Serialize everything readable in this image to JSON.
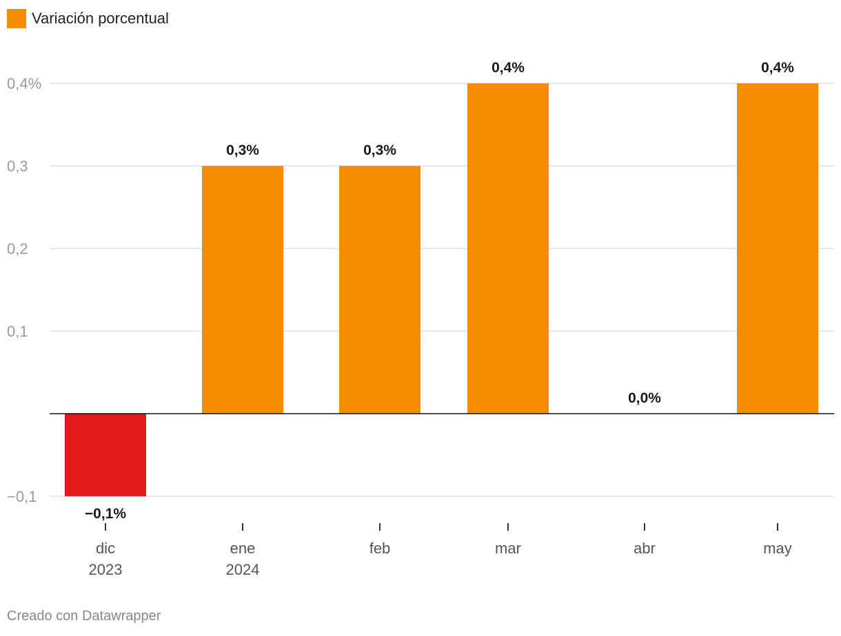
{
  "legend": {
    "label": "Variación porcentual",
    "color": "#f68e00"
  },
  "footer": {
    "text": "Creado con Datawrapper"
  },
  "colors": {
    "positive": "#f68e00",
    "negative": "#e31a1c",
    "grid": "#e2e2e2",
    "baseline": "#111111"
  },
  "chart_data": {
    "type": "bar",
    "categories": [
      [
        "dic",
        "2023"
      ],
      [
        "ene",
        "2024"
      ],
      [
        "feb"
      ],
      [
        "mar"
      ],
      [
        "abr"
      ],
      [
        "may"
      ]
    ],
    "values": [
      -0.1,
      0.3,
      0.3,
      0.4,
      0.0,
      0.4
    ],
    "data_labels": [
      "−0,1%",
      "0,3%",
      "0,3%",
      "0,4%",
      "0,0%",
      "0,4%"
    ],
    "yticks": [
      {
        "value": 0.4,
        "label": "0,4%"
      },
      {
        "value": 0.3,
        "label": "0,3"
      },
      {
        "value": 0.2,
        "label": "0,2"
      },
      {
        "value": 0.1,
        "label": "0,1"
      },
      {
        "value": -0.1,
        "label": "−0,1"
      }
    ],
    "ylim": [
      -0.1,
      0.4
    ],
    "grid": true,
    "legend_position": "top-left",
    "series": [
      {
        "name": "Variación porcentual"
      }
    ]
  }
}
